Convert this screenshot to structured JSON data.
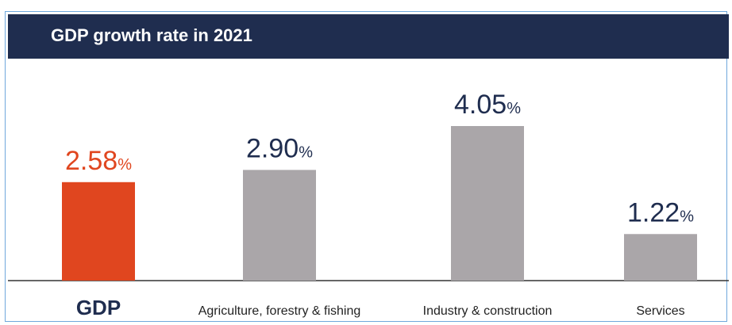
{
  "chart_data": {
    "type": "bar",
    "title": "GDP growth rate in 2021",
    "categories": [
      "GDP",
      "Agriculture, forestry & fishing",
      "Industry & construction",
      "Services"
    ],
    "values": [
      2.58,
      2.9,
      4.05,
      1.22
    ],
    "value_labels": [
      "2.58",
      "2.90",
      "4.05",
      "1.22"
    ],
    "unit": "%",
    "ylim": [
      0,
      5
    ],
    "grid": false,
    "legend": "none",
    "colors": {
      "highlight": "#e0461f",
      "bar": "#aaa6a9",
      "label_dark": "#1f2d4f",
      "axis": "#333333",
      "header": "#1f2d4f"
    },
    "highlight_index": 0
  }
}
